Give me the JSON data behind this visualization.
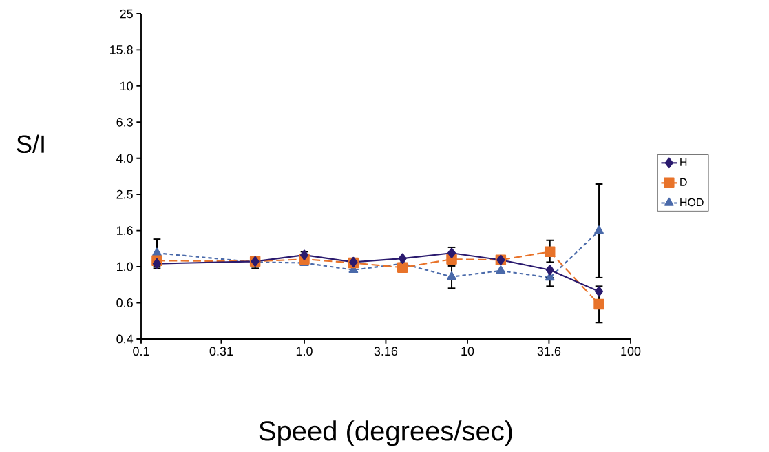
{
  "chart_data": {
    "type": "line",
    "xlabel": "Speed (degrees/sec)",
    "ylabel": "S/I",
    "x": [
      0.125,
      0.5,
      1,
      2,
      4,
      8,
      16,
      32,
      64
    ],
    "series": [
      {
        "name": "H",
        "color": "#2a1a6e",
        "marker": "diamond",
        "line_style": "solid",
        "values": [
          1.04,
          1.07,
          1.16,
          1.06,
          1.11,
          1.19,
          1.09,
          0.96,
          0.73
        ],
        "errors": [
          [
            0.98,
            1.04
          ],
          null,
          [
            1.1,
            1.21
          ],
          null,
          null,
          [
            1.19,
            1.28
          ],
          null,
          null,
          null
        ]
      },
      {
        "name": "D",
        "color": "#e8732a",
        "marker": "square",
        "line_style": "dashed",
        "values": [
          1.08,
          1.07,
          1.1,
          1.05,
          0.99,
          1.1,
          1.09,
          1.21,
          0.62
        ],
        "errors": [
          null,
          [
            0.98,
            1.14
          ],
          null,
          null,
          null,
          null,
          null,
          [
            1.06,
            1.4
          ],
          [
            0.49,
            0.78
          ]
        ]
      },
      {
        "name": "HOD",
        "color": "#4a6aaa",
        "marker": "triangle",
        "line_style": "dotted",
        "values": [
          1.19,
          1.06,
          1.05,
          0.96,
          1.04,
          0.88,
          0.95,
          0.87,
          1.58
        ],
        "errors": [
          [
            1.0,
            1.42
          ],
          null,
          null,
          null,
          null,
          [
            0.76,
            1.01
          ],
          null,
          [
            0.78,
            0.87
          ],
          [
            0.87,
            2.87
          ]
        ]
      }
    ],
    "log": "xy",
    "xlim": [
      0.1,
      100
    ],
    "ylim": [
      0.398,
      25.119
    ],
    "xticks": [
      0.1,
      0.31,
      {
        "value": 1,
        "label": "1.0"
      },
      3.16,
      10,
      31.6,
      100
    ],
    "yticks": [
      {
        "value": 0.398,
        "label": "0.4"
      },
      {
        "value": 0.631,
        "label": "0.6"
      },
      {
        "value": 1,
        "label": "1.0"
      },
      {
        "value": 1.585,
        "label": "1.6"
      },
      {
        "value": 2.512,
        "label": "2.5"
      },
      {
        "value": 3.981,
        "label": "4.0"
      },
      {
        "value": 6.31,
        "label": "6.3"
      },
      10,
      {
        "value": 15.849,
        "label": "15.8"
      },
      {
        "value": 25.119,
        "label": "25"
      }
    ],
    "legend": "right",
    "grid": false
  }
}
